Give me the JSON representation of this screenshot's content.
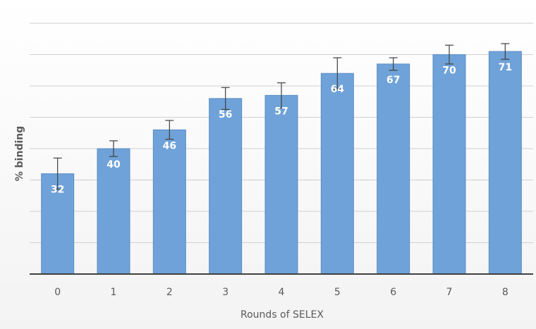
{
  "chart_data": {
    "type": "bar",
    "title": "",
    "xlabel": "Rounds of SELEX",
    "ylabel": "% binding",
    "categories": [
      "0",
      "1",
      "2",
      "3",
      "4",
      "5",
      "6",
      "7",
      "8"
    ],
    "values": [
      32,
      40,
      46,
      56,
      57,
      64,
      67,
      70,
      71
    ],
    "error_plus": [
      5,
      2.5,
      3,
      3.5,
      4,
      5,
      2,
      3,
      2.5
    ],
    "error_minus": [
      5,
      2.5,
      3,
      3.5,
      4,
      5,
      2,
      3,
      2.5
    ],
    "data_labels": [
      "32",
      "40",
      "46",
      "56",
      "57",
      "64",
      "67",
      "70",
      "71"
    ],
    "ylim": [
      0,
      80
    ],
    "y_gridline_step": 10,
    "y_tick_labels_shown": false,
    "grid": true,
    "legend": "none",
    "colors": {
      "bar": "#6fa2d8",
      "bar_edge": "#5b8fc6",
      "gridline": "#d0d0d0",
      "axis_line": "#404040",
      "error_bar": "#404040",
      "background": "#ffffff",
      "text": "#595959"
    }
  }
}
